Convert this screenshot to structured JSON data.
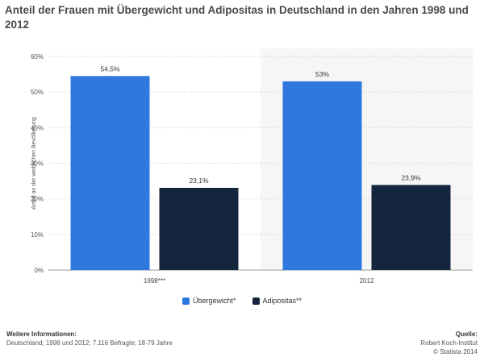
{
  "chart_data": {
    "type": "bar",
    "title": "Anteil der Frauen mit Übergewicht und Adipositas in Deutschland in den Jahren 1998 und 2012",
    "categories": [
      "1998***",
      "2012"
    ],
    "series": [
      {
        "name": "Übergewicht*",
        "color": "#2f78e0",
        "values": [
          54.5,
          53
        ],
        "labels": [
          "54,5%",
          "53%"
        ]
      },
      {
        "name": "Adipositas**",
        "color": "#13263d",
        "values": [
          23.1,
          23.9
        ],
        "labels": [
          "23,1%",
          "23,9%"
        ]
      }
    ],
    "ylabel": "Anteil an der weiblichen Bevölkerung",
    "xlabel": "",
    "ylim": [
      0,
      60
    ],
    "yticks": [
      0,
      10,
      20,
      30,
      40,
      50,
      60
    ],
    "ytick_labels": [
      "0%",
      "10%",
      "20%",
      "30%",
      "40%",
      "50%",
      "60%"
    ],
    "legend_position": "bottom-center",
    "grid": true
  },
  "footer": {
    "info_heading": "Weitere Informationen:",
    "info_text": "Deutschland; 1998 und 2012; 7.116 Befragte; 18-79 Jahre",
    "source_heading": "Quelle:",
    "source_text": "Robert Koch-Institut",
    "copyright": "© Statista 2014"
  }
}
